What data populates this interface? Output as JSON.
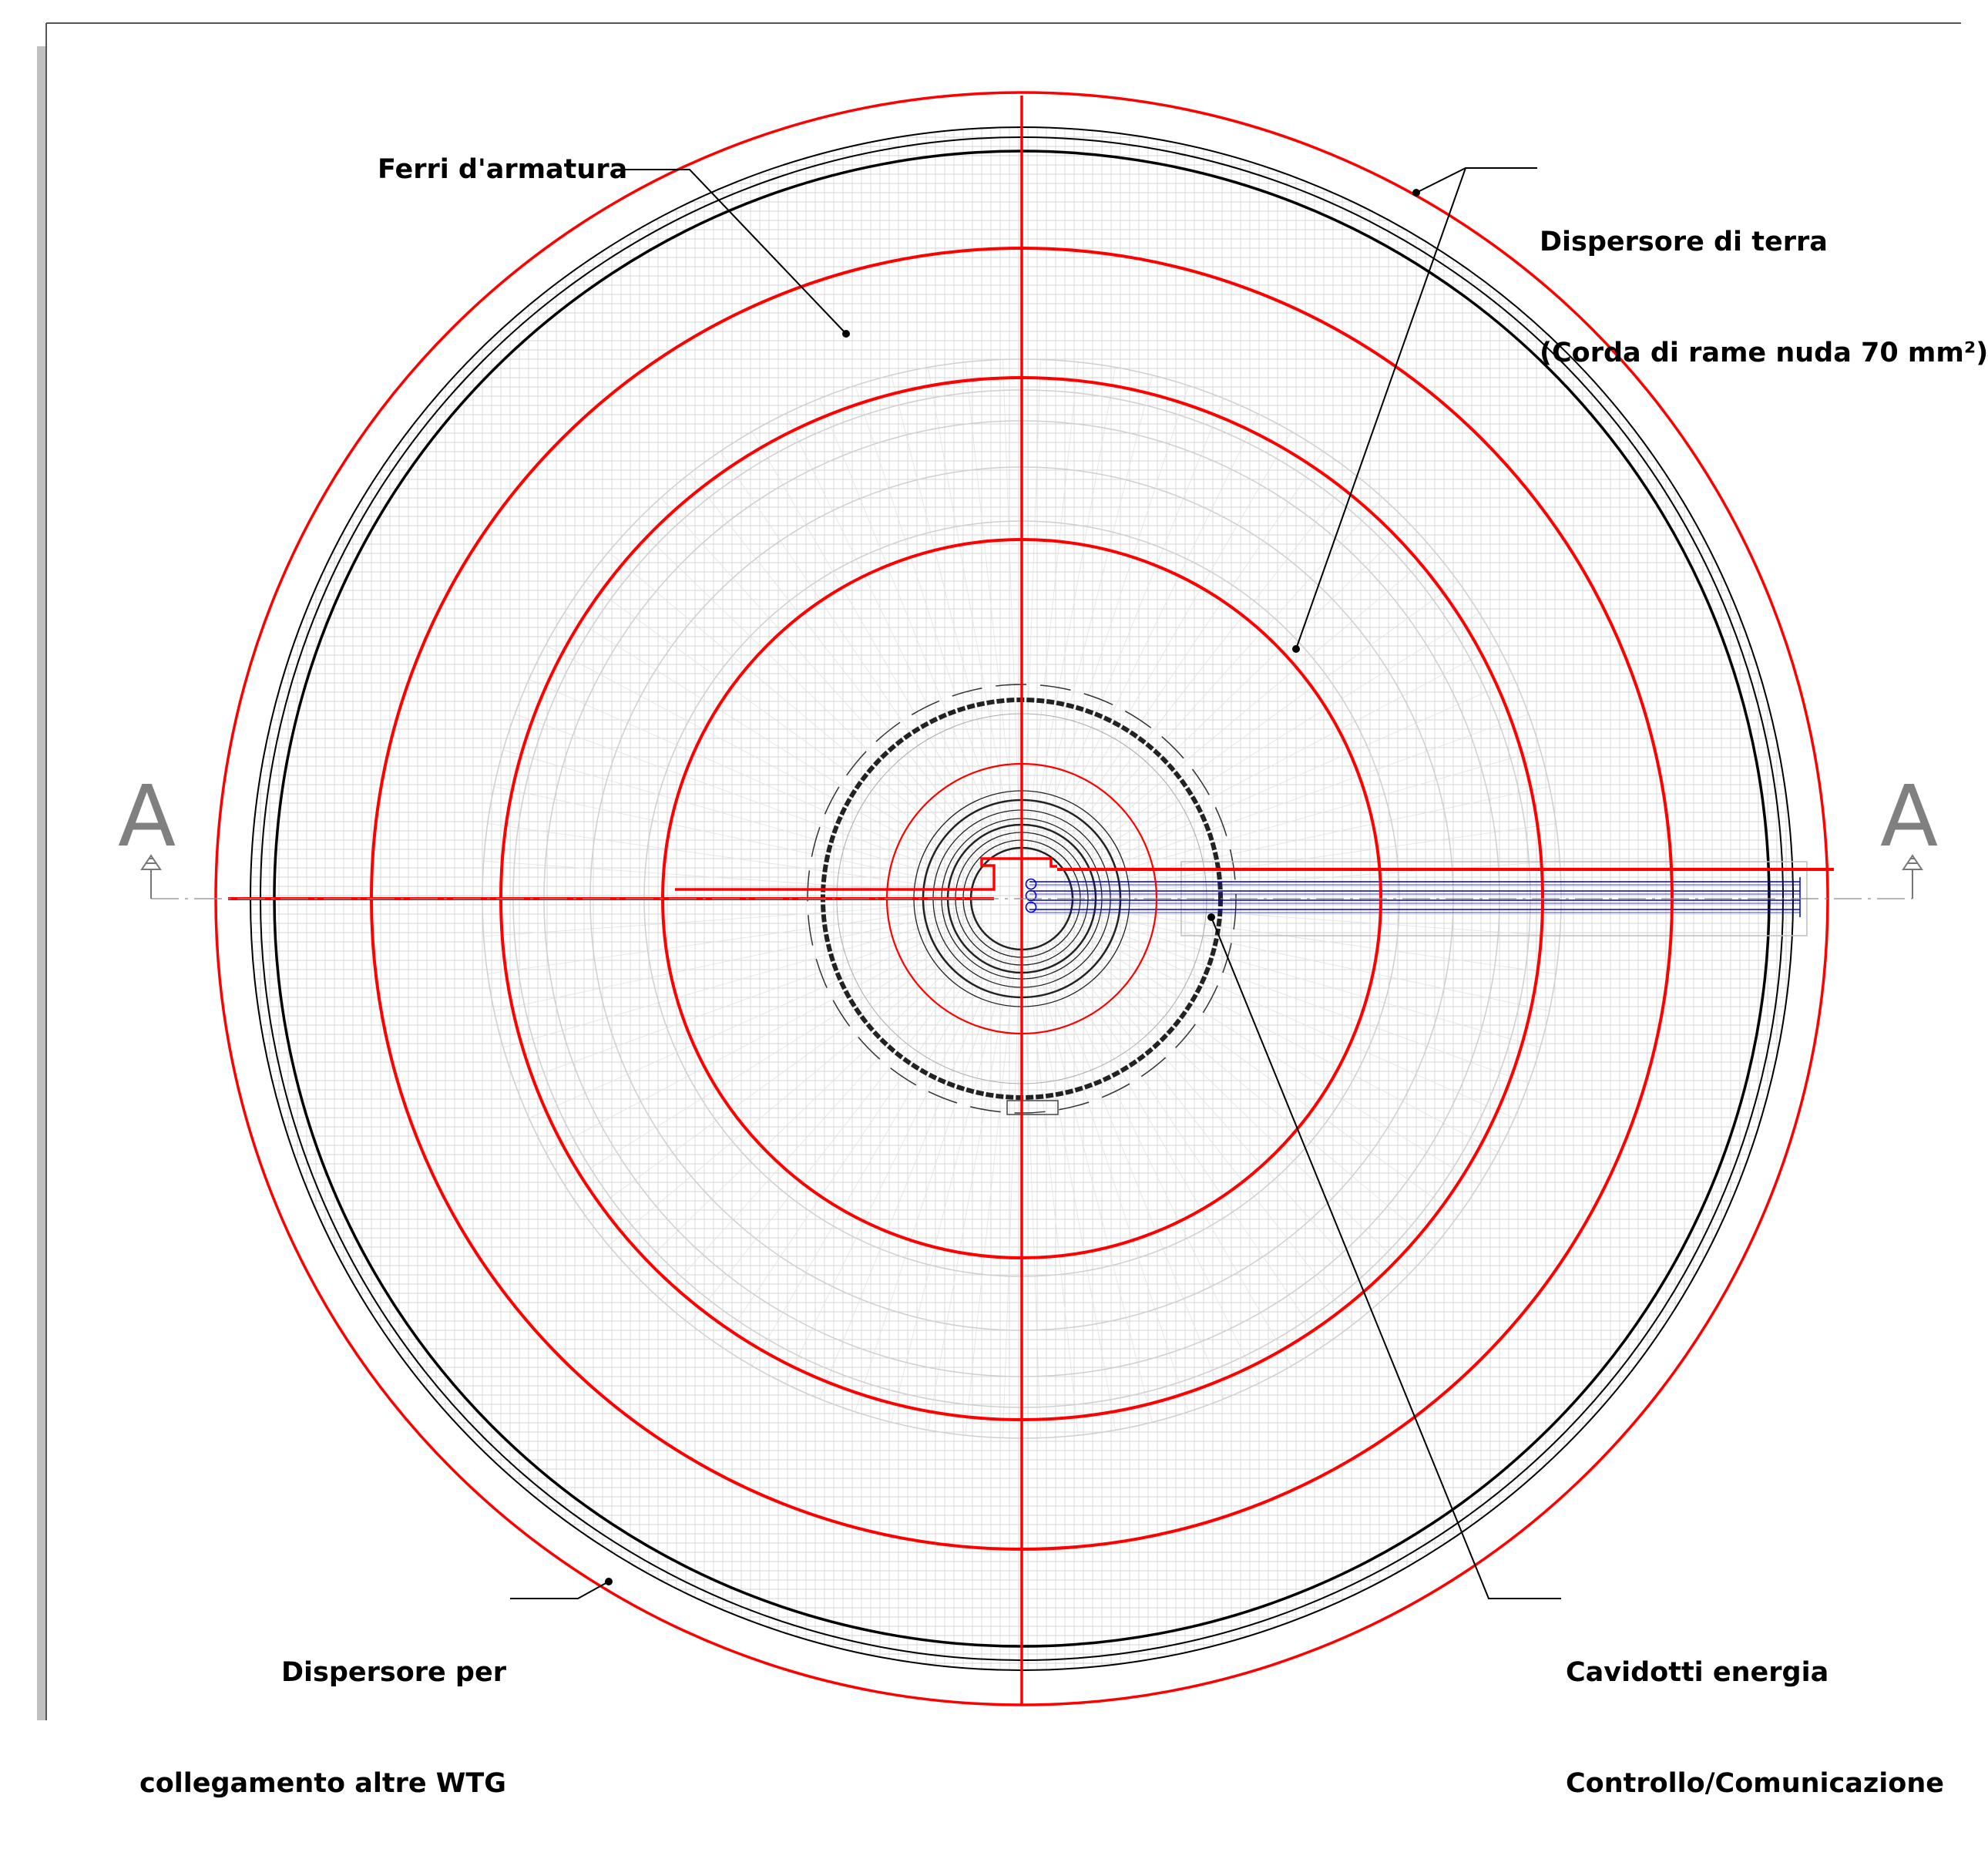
{
  "drawing": {
    "labels": {
      "ferri": "Ferri d'armatura",
      "dispersore_terra_1": "Dispersore di terra",
      "dispersore_terra_2": "(Corda di rame nuda 70 mm²)",
      "dispersore_per_1": "Dispersore per",
      "dispersore_per_2": "collegamento altre WTG",
      "cavidotti_1": "Cavidotti energia",
      "cavidotti_2": "Controllo/Comunicazione"
    },
    "section_markers": {
      "left": "A",
      "right": "A"
    },
    "colors": {
      "grounding": "#ff0000",
      "cables": "#0000cc",
      "structure": "#000000",
      "rebar_grid": "#d6d6d6",
      "section_marker": "#808080",
      "frame_shadow": "#c0c0c0"
    },
    "icons": [
      "section-arrow-icon",
      "leader-dot-icon",
      "cable-duct-icon"
    ]
  }
}
